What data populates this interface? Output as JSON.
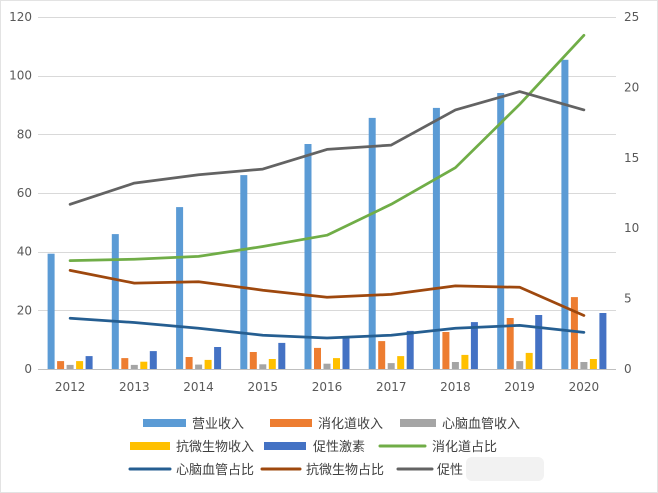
{
  "chart_data": {
    "type": "bar",
    "categories": [
      "2012",
      "2013",
      "2014",
      "2015",
      "2016",
      "2017",
      "2018",
      "2019",
      "2020"
    ],
    "y_left": {
      "range": [
        0,
        120
      ],
      "ticks": [
        0,
        20,
        40,
        60,
        80,
        100,
        120
      ]
    },
    "y_right": {
      "range": [
        0,
        25
      ],
      "ticks": [
        0,
        5,
        10,
        15,
        20,
        25
      ]
    },
    "grid": true,
    "legend_position": "bottom",
    "series": [
      {
        "name": "营业收入",
        "type": "bar",
        "axis": "left",
        "color": "#5B9BD5",
        "values": [
          39.3,
          46.0,
          55.2,
          66.1,
          76.7,
          85.6,
          89.0,
          94.1,
          105.4
        ]
      },
      {
        "name": "消化道收入",
        "type": "bar",
        "axis": "left",
        "color": "#ED7D31",
        "values": [
          2.7,
          3.7,
          4.1,
          5.8,
          7.2,
          9.5,
          12.6,
          17.4,
          24.5
        ]
      },
      {
        "name": "心脑血管收入",
        "type": "bar",
        "axis": "left",
        "color": "#A5A5A5",
        "values": [
          1.4,
          1.4,
          1.5,
          1.6,
          1.8,
          2.0,
          2.4,
          2.7,
          2.4
        ]
      },
      {
        "name": "抗微生物收入",
        "type": "bar",
        "axis": "left",
        "color": "#FFC000",
        "values": [
          2.7,
          2.5,
          3.1,
          3.4,
          3.7,
          4.4,
          4.8,
          5.5,
          3.4
        ]
      },
      {
        "name": "促性激素",
        "type": "bar",
        "axis": "left",
        "color": "#4472C4",
        "values": [
          4.4,
          6.1,
          7.5,
          8.9,
          10.9,
          13.0,
          16.0,
          18.4,
          19.1
        ]
      },
      {
        "name": "消化道占比",
        "type": "line",
        "axis": "right",
        "color": "#70AD47",
        "values": [
          7.7,
          7.8,
          8.0,
          8.7,
          9.5,
          11.7,
          14.3,
          18.8,
          23.7
        ]
      },
      {
        "name": "心脑血管占比",
        "type": "line",
        "axis": "right",
        "color": "#255E91",
        "values": [
          3.6,
          3.3,
          2.9,
          2.4,
          2.2,
          2.4,
          2.9,
          3.1,
          2.6
        ]
      },
      {
        "name": "抗微生物占比",
        "type": "line",
        "axis": "right",
        "color": "#9E480E",
        "values": [
          7.0,
          6.1,
          6.2,
          5.6,
          5.1,
          5.3,
          5.9,
          5.8,
          3.8
        ]
      },
      {
        "name": "促性",
        "type": "line",
        "axis": "right",
        "color": "#636363",
        "values": [
          11.7,
          13.2,
          13.8,
          14.2,
          15.6,
          15.9,
          18.4,
          19.7,
          18.4
        ]
      }
    ]
  }
}
